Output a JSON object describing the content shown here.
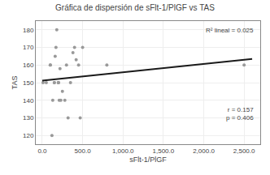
{
  "chart_data": {
    "type": "scatter",
    "title": "Gráfica de dispersión de sFlt-1/PlGF vs TAS",
    "xlabel": "sFlt-1/PlGF",
    "ylabel": "TAS",
    "series": [
      {
        "type": "scatter",
        "color": "#999999",
        "x": [
          10,
          50,
          100,
          120,
          130,
          150,
          160,
          170,
          180,
          200,
          200,
          210,
          220,
          230,
          250,
          280,
          300,
          320,
          350,
          380,
          400,
          420,
          450,
          470,
          500,
          800,
          2500,
          100,
          150,
          200
        ],
        "values": [
          150,
          150,
          160,
          120,
          140,
          150,
          165,
          170,
          180,
          150,
          150,
          140,
          158,
          140,
          145,
          140,
          160,
          130,
          150,
          167,
          170,
          163,
          160,
          130,
          170,
          160,
          160,
          160,
          150,
          150
        ]
      },
      {
        "type": "line",
        "color": "#1a1a1a",
        "x": [
          0,
          2600
        ],
        "values": [
          151.2,
          163.5
        ]
      }
    ],
    "annotations": [
      "R² lineal = 0.025",
      "r = 0.157",
      "p = 0.406"
    ],
    "xlim": [
      -80,
      2700
    ],
    "ylim": [
      115,
      185
    ],
    "xticks": [
      {
        "value": 0,
        "label": "0.0"
      },
      {
        "value": 500,
        "label": "500.0"
      },
      {
        "value": 1000,
        "label": "1,000.0"
      },
      {
        "value": 1500,
        "label": "1,500.0"
      },
      {
        "value": 2000,
        "label": "2,000.0"
      },
      {
        "value": 2500,
        "label": "2,500.0"
      }
    ],
    "yticks": [
      120,
      130,
      140,
      150,
      160,
      170,
      180
    ],
    "grid": true
  }
}
